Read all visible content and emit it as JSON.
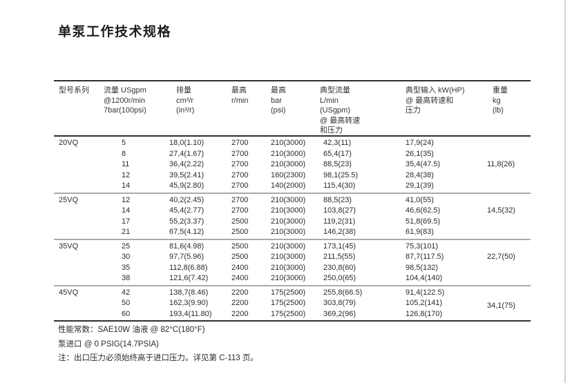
{
  "page": {
    "title": "单泵工作技术规格"
  },
  "table": {
    "headers": [
      {
        "lines": [
          "型号系列"
        ]
      },
      {
        "lines": [
          "流量 USgpm",
          "@1200r/min",
          "7bar(100psi)"
        ]
      },
      {
        "lines": [
          "排量",
          "cm³/r",
          "(in³/r)"
        ]
      },
      {
        "lines": [
          "最高",
          "r/min"
        ]
      },
      {
        "lines": [
          "最高",
          "bar",
          "(psi)"
        ]
      },
      {
        "lines": [
          "典型流量",
          "L/min",
          "(USgpm)",
          "@ 最高转速",
          "和压力"
        ]
      },
      {
        "lines": [
          "典型输入 kW(HP)",
          "@ 最高转速和",
          "压力"
        ]
      },
      {
        "lines": [
          "重量",
          "kg",
          "(lb)"
        ]
      }
    ],
    "groups": [
      {
        "model": "20VQ",
        "weight": "11,8(26)",
        "rows": [
          [
            "5",
            "18,0(1.10)",
            "2700",
            "210(3000)",
            "42,3(11)",
            "17,9(24)"
          ],
          [
            "8",
            "27,4(1.67)",
            "2700",
            "210(3000)",
            "65,4(17)",
            "26,1(35)"
          ],
          [
            "11",
            "36,4(2.22)",
            "2700",
            "210(3000)",
            "88,5(23)",
            "35,4(47.5)"
          ],
          [
            "12",
            "39,5(2.41)",
            "2700",
            "160(2300)",
            "98,1(25.5)",
            "28,4(38)"
          ],
          [
            "14",
            "45,9(2.80)",
            "2700",
            "140(2000)",
            "115,4(30)",
            "29,1(39)"
          ]
        ]
      },
      {
        "model": "25VQ",
        "weight": "14,5(32)",
        "rows": [
          [
            "12",
            "40,2(2.45)",
            "2700",
            "210(3000)",
            "88,5(23)",
            "41,0(55)"
          ],
          [
            "14",
            "45,4(2.77)",
            "2700",
            "210(3000)",
            "103,8(27)",
            "46,6(62.5)"
          ],
          [
            "17",
            "55,2(3.37)",
            "2500",
            "210(3000)",
            "119,2(31)",
            "51,8(69.5)"
          ],
          [
            "21",
            "67,5(4.12)",
            "2500",
            "210(3000)",
            "146,2(38)",
            "61,9(83)"
          ]
        ]
      },
      {
        "model": "35VQ",
        "weight": "22,7(50)",
        "rows": [
          [
            "25",
            "81,6(4.98)",
            "2500",
            "210(3000)",
            "173,1(45)",
            "75,3(101)"
          ],
          [
            "30",
            "97,7(5.96)",
            "2500",
            "210(3000)",
            "211,5(55)",
            "87,7(117.5)"
          ],
          [
            "35",
            "112,8(6.88)",
            "2400",
            "210(3000)",
            "230,8(60)",
            "98,5(132)"
          ],
          [
            "38",
            "121,6(7.42)",
            "2400",
            "210(3000)",
            "250,0(65)",
            "104,4(140)"
          ]
        ]
      },
      {
        "model": "45VQ",
        "weight": "34,1(75)",
        "rows": [
          [
            "42",
            "138,7(8.46)",
            "2200",
            "175(2500)",
            "255,8(66.5)",
            "91,4(122.5)"
          ],
          [
            "50",
            "162,3(9.90)",
            "2200",
            "175(2500)",
            "303,8(79)",
            "105,2(141)"
          ],
          [
            "60",
            "193,4(11.80)",
            "2200",
            "175(2500)",
            "369,2(96)",
            "126,8(170)"
          ]
        ]
      }
    ]
  },
  "notes": [
    "性能常数：SAE10W 油液 @ 82°C(180°F)",
    "泵进口 @ 0 PSIG(14.7PSIA)",
    "注：出口压力必须始终高于进口压力。详见第 C-113 页。"
  ]
}
